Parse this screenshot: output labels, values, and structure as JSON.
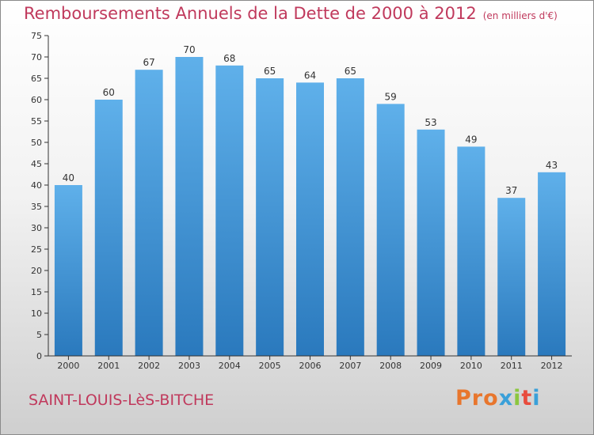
{
  "title": "Remboursements Annuels de la Dette de 2000 à 2012",
  "unit": "(en milliers d'€)",
  "location": "SAINT-LOUIS-LèS-BITCHE",
  "brand": "Proxiti",
  "colors": {
    "title": "#c0395c",
    "bar_top": "#5fb0ea",
    "bar_bottom": "#2a79bd",
    "axis": "#333333",
    "logo": [
      "#e8762d",
      "#e8762d",
      "#e8762d",
      "#3aa0d9",
      "#8cc63f",
      "#e84c3d",
      "#3aa0d9"
    ]
  },
  "chart_data": {
    "type": "bar",
    "categories": [
      "2000",
      "2001",
      "2002",
      "2003",
      "2004",
      "2005",
      "2006",
      "2007",
      "2008",
      "2009",
      "2010",
      "2011",
      "2012"
    ],
    "values": [
      40,
      60,
      67,
      70,
      68,
      65,
      64,
      65,
      59,
      53,
      49,
      37,
      43
    ],
    "ylim": [
      0,
      75
    ],
    "yticks": [
      0,
      5,
      10,
      15,
      20,
      25,
      30,
      35,
      40,
      45,
      50,
      55,
      60,
      65,
      70,
      75
    ],
    "grid": false,
    "data_labels": true
  }
}
